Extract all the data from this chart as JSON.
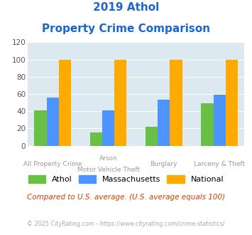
{
  "title_line1": "2019 Athol",
  "title_line2": "Property Crime Comparison",
  "cat_labels_line1": [
    "All Property Crime",
    "Arson",
    "Burglary",
    "Larceny & Theft"
  ],
  "cat_labels_line2": [
    "",
    "Motor Vehicle Theft",
    "",
    ""
  ],
  "athol": [
    41,
    15,
    22,
    49
  ],
  "massachusetts": [
    56,
    41,
    53,
    59
  ],
  "national": [
    100,
    100,
    100,
    100
  ],
  "athol_color": "#6abf45",
  "mass_color": "#4d94ff",
  "national_color": "#ffaa00",
  "ylim": [
    0,
    120
  ],
  "yticks": [
    0,
    20,
    40,
    60,
    80,
    100,
    120
  ],
  "bg_color": "#dce9f0",
  "title_color": "#1a66cc",
  "xlabel_color": "#999999",
  "legend_labels": [
    "Athol",
    "Massachusetts",
    "National"
  ],
  "footer_text": "Compared to U.S. average. (U.S. average equals 100)",
  "copyright_text": "© 2025 CityRating.com - https://www.cityrating.com/crime-statistics/",
  "footer_color": "#cc4400",
  "copyright_color": "#aaaaaa"
}
